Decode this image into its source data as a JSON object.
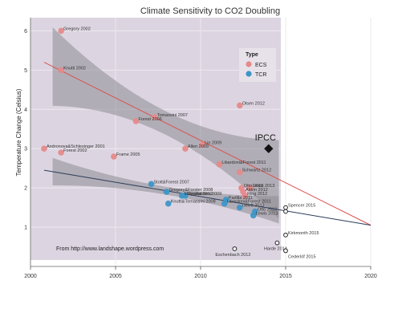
{
  "chart_data": {
    "type": "scatter",
    "title": "Climate Sensitivity to CO2 Doubling",
    "ylabel": "Temperature Change (Celsius)",
    "xlabel": "",
    "xlim": [
      2000,
      2020
    ],
    "ylim": [
      0,
      6.5
    ],
    "x_ticks": [
      "2000",
      "2005",
      "2010",
      "2015",
      "2020"
    ],
    "y_ticks": [
      "1",
      "2",
      "3",
      "4",
      "5",
      "6"
    ],
    "legend": {
      "title": "Type",
      "position": "top-right",
      "items": [
        "ECS",
        "TCR"
      ]
    },
    "annotation": "From http://www.landshape.wordpress.com",
    "ipcc": {
      "label": "IPCC",
      "x": 2014,
      "y": 3.0
    },
    "series": [
      {
        "name": "ECS",
        "color": "#e58a8a",
        "points": [
          {
            "x": 2001.8,
            "y": 6.0,
            "label": "Gregory 2002"
          },
          {
            "x": 2001.8,
            "y": 5.0,
            "label": "Knutti 2002"
          },
          {
            "x": 2012.3,
            "y": 4.1,
            "label": "Olsen 2012"
          },
          {
            "x": 2007.3,
            "y": 3.8,
            "label": "Tomassini 2007"
          },
          {
            "x": 2006.2,
            "y": 3.7,
            "label": "Forest 2006"
          },
          {
            "x": 2010.1,
            "y": 3.1,
            "label": "Lin 2009"
          },
          {
            "x": 2009.1,
            "y": 3.0,
            "label": "Allen 2009"
          },
          {
            "x": 2000.8,
            "y": 3.0,
            "label": "Andronova&Schlesinger 2001"
          },
          {
            "x": 2001.8,
            "y": 2.9,
            "label": "Forest 2002"
          },
          {
            "x": 2004.9,
            "y": 2.8,
            "label": "Frame 2005"
          },
          {
            "x": 2011.1,
            "y": 2.6,
            "label": "Libardoni&Forest 2011"
          },
          {
            "x": 2012.3,
            "y": 2.4,
            "label": "Schwartz 2012"
          },
          {
            "x": 2012.4,
            "y": 2.0,
            "label": "Otto 2013"
          },
          {
            "x": 2012.9,
            "y": 2.0,
            "label": "Lewis 2013"
          },
          {
            "x": 2012.5,
            "y": 1.9,
            "label": "Aldrin 2012"
          },
          {
            "x": 2012.6,
            "y": 1.8,
            "label": "Ring 2012"
          }
        ]
      },
      {
        "name": "TCR",
        "color": "#3d96c7",
        "points": [
          {
            "x": 2007.1,
            "y": 2.1,
            "label": "Stott&Forest 2007"
          },
          {
            "x": 2008.0,
            "y": 1.9,
            "label": "Gregory&Forster 2008"
          },
          {
            "x": 2009.1,
            "y": 1.8,
            "label": "Rypdal 2012"
          },
          {
            "x": 2008.9,
            "y": 1.8,
            "label": "Meinshausen 2009"
          },
          {
            "x": 2011.5,
            "y": 1.7,
            "label": "Padilla 2011"
          },
          {
            "x": 2008.1,
            "y": 1.6,
            "label": "Knutti&Tomassini 2008"
          },
          {
            "x": 2011.4,
            "y": 1.6,
            "label": "Libardoni&Forest 2011"
          },
          {
            "x": 2012.3,
            "y": 1.5,
            "label": "Gillett 2013"
          },
          {
            "x": 2013.2,
            "y": 1.4,
            "label": "Otto 2013"
          },
          {
            "x": 2013.1,
            "y": 1.3,
            "label": "Lewis 2013"
          }
        ]
      },
      {
        "name": "",
        "color": "#333333",
        "marker": "open-circle",
        "points": [
          {
            "x": 2015.0,
            "y": 1.5,
            "label": "Spencer 2015"
          },
          {
            "x": 2015.0,
            "y": 1.4,
            "label": ""
          },
          {
            "x": 2015.0,
            "y": 0.8,
            "label": "Kirkmonth 2015"
          },
          {
            "x": 2014.5,
            "y": 0.6,
            "label": "Harde 2014"
          },
          {
            "x": 2012.0,
            "y": 0.45,
            "label": "Eschenbach 2012"
          },
          {
            "x": 2015.0,
            "y": 0.4,
            "label": "Cederlöf 2015"
          }
        ]
      }
    ],
    "trend_lines": [
      {
        "series": "ECS",
        "color": "#d9534f",
        "from": {
          "x": 2000.8,
          "y": 5.2
        },
        "to": {
          "x": 2020,
          "y": 1.05
        }
      },
      {
        "series": "TCR",
        "color": "#2a3c5a",
        "from": {
          "x": 2000.8,
          "y": 2.45
        },
        "to": {
          "x": 2020,
          "y": 1.05
        }
      }
    ]
  }
}
